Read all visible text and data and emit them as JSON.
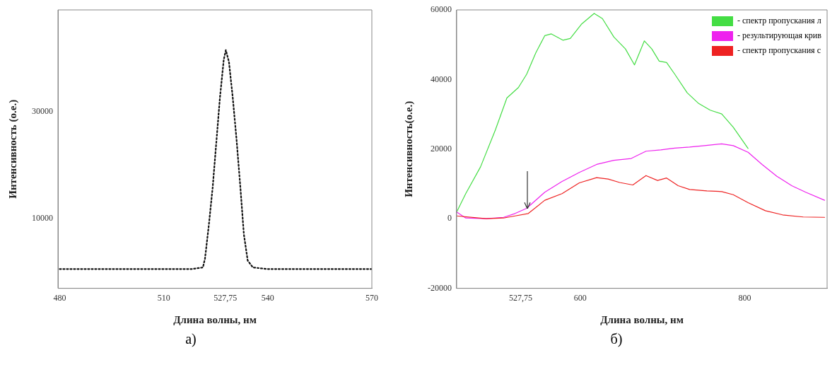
{
  "chart_data": [
    {
      "type": "line",
      "xlabel": "Длина волны, нм",
      "ylabel": "Интенсивность (о.е.)",
      "line_style": "dotted",
      "grid": false,
      "xlim": [
        479.5,
        570
      ],
      "xticks": [
        480,
        510,
        {
          "value": 527.75,
          "label": "527,75"
        },
        540,
        570
      ],
      "ylim": [
        -3000,
        49000
      ],
      "yticks": [
        10000,
        30000
      ],
      "series": [
        {
          "color": "#111111",
          "x": [
            480,
            490,
            500,
            510,
            518,
            521.3,
            521.9,
            523.0,
            524.1,
            525.1,
            526.2,
            527.3,
            527.9,
            528.8,
            529.9,
            531.0,
            532.1,
            533.1,
            534.2,
            535.7,
            540,
            550,
            560,
            570
          ],
          "values": [
            600,
            600,
            600,
            600,
            600,
            900,
            2600,
            8800,
            15800,
            23800,
            32600,
            39700,
            41500,
            39300,
            32600,
            24700,
            15800,
            7100,
            2200,
            900,
            600,
            600,
            600,
            600
          ]
        }
      ],
      "annotations": [
        "а)"
      ]
    },
    {
      "type": "line",
      "xlabel": "Длина волны, нм",
      "ylabel": "Интенсивность(о.е.)",
      "marker": "none",
      "grid": false,
      "legend": "top right",
      "xlim": [
        450,
        900
      ],
      "xticks": [
        {
          "value": 527.75,
          "label": "527,75"
        },
        600,
        800
      ],
      "ylim": [
        -20000,
        60000
      ],
      "yticks": [
        -20000,
        0,
        20000,
        40000,
        60000
      ],
      "series": [
        {
          "name": "- спектр пропускания л",
          "color": "#44dd44",
          "x": [
            450,
            461,
            479,
            497,
            511,
            525,
            535,
            546,
            557,
            565,
            579,
            588,
            602,
            617,
            627,
            641,
            655,
            666,
            678,
            687,
            696,
            705,
            715,
            730,
            744,
            758,
            772,
            786,
            804
          ],
          "values": [
            1900,
            7200,
            14900,
            25500,
            34700,
            37700,
            41500,
            47600,
            52600,
            53100,
            51300,
            51800,
            56000,
            59000,
            57500,
            52200,
            48800,
            44200,
            51100,
            48800,
            45300,
            44900,
            41500,
            36200,
            33100,
            31200,
            30100,
            26300,
            20200
          ]
        },
        {
          "name": "- результирующая крив",
          "color": "#ee22ee",
          "x": [
            450,
            461,
            486,
            507,
            521,
            535,
            557,
            578,
            599,
            620,
            641,
            662,
            680,
            698,
            715,
            733,
            751,
            772,
            786,
            804,
            821,
            839,
            857,
            874,
            897
          ],
          "values": [
            1900,
            200,
            0,
            400,
            1500,
            3000,
            7600,
            10700,
            13300,
            15600,
            16800,
            17300,
            19400,
            19800,
            20300,
            20600,
            21000,
            21500,
            21000,
            19100,
            15600,
            12200,
            9500,
            7600,
            5300
          ]
        },
        {
          "name": "- спектр пропускания с",
          "color": "#ee2222",
          "x": [
            450,
            486,
            507,
            521,
            537,
            557,
            578,
            599,
            620,
            634,
            648,
            664,
            680,
            694,
            705,
            719,
            733,
            754,
            772,
            786,
            804,
            825,
            846,
            871,
            897
          ],
          "values": [
            800,
            0,
            200,
            800,
            1500,
            5300,
            7200,
            10300,
            11800,
            11400,
            10400,
            9700,
            12400,
            11000,
            11700,
            9500,
            8400,
            8000,
            7800,
            6900,
            4600,
            2300,
            1100,
            500,
            400
          ]
        }
      ],
      "annotations": [
        "б)"
      ]
    }
  ]
}
